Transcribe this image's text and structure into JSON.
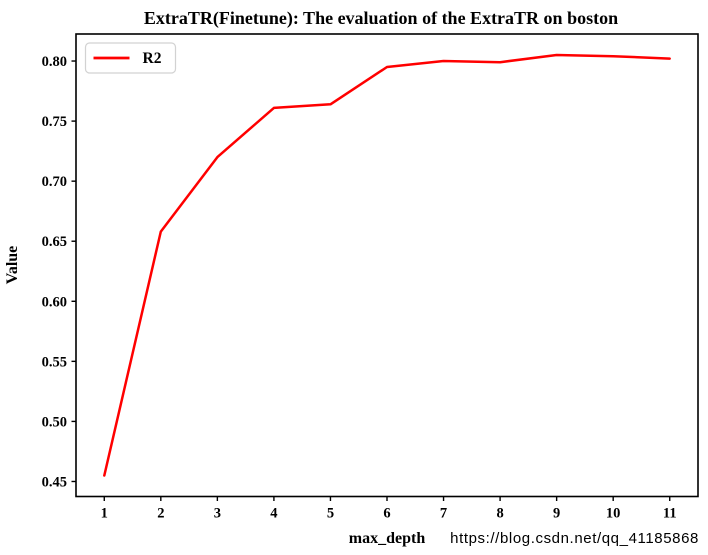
{
  "page": {
    "watermark": "https://blog.csdn.net/qq_41185868"
  },
  "chart_data": {
    "type": "line",
    "title": "ExtraTR(Finetune): The evaluation of the ExtraTR on boston",
    "xlabel": "max_depth",
    "ylabel": "Value",
    "x": [
      1,
      2,
      3,
      4,
      5,
      6,
      7,
      8,
      9,
      10,
      11
    ],
    "series": [
      {
        "name": "R2",
        "color": "#ff0000",
        "values": [
          0.455,
          0.658,
          0.72,
          0.761,
          0.764,
          0.795,
          0.8,
          0.799,
          0.805,
          0.804,
          0.802
        ]
      }
    ],
    "xticks": [
      1,
      2,
      3,
      4,
      5,
      6,
      7,
      8,
      9,
      10,
      11
    ],
    "yticks": [
      0.45,
      0.5,
      0.55,
      0.6,
      0.65,
      0.7,
      0.75,
      0.8
    ],
    "xlim": [
      0.5,
      11.5
    ],
    "ylim": [
      0.4375,
      0.8225
    ],
    "grid": false,
    "legend": {
      "label": "R2",
      "position": "upper-left"
    },
    "colors": {
      "line": "#ff0000",
      "axis": "#000000",
      "text": "#000000",
      "watermark": "#d6d6d6",
      "legend_border": "#d2d2d2",
      "background": "#ffffff"
    }
  }
}
